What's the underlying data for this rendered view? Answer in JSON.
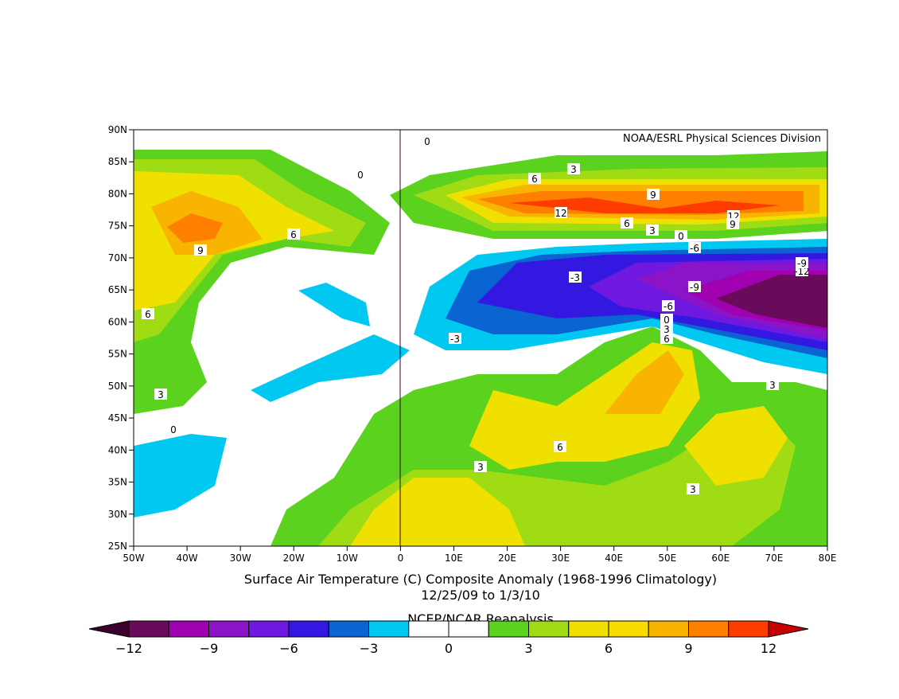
{
  "map": {
    "credit": "NOAA/ESRL Physical Sciences Division",
    "title": "Surface Air Temperature (C) Composite Anomaly (1968-1996 Climatology)",
    "dates": "12/25/09   to 1/3/10",
    "source": "NCEP/NCAR Reanalysis",
    "lat_labels": [
      "90N",
      "85N",
      "80N",
      "75N",
      "70N",
      "65N",
      "60N",
      "55N",
      "50N",
      "45N",
      "40N",
      "35N",
      "30N",
      "25N"
    ],
    "lon_labels": [
      "50W",
      "40W",
      "30W",
      "20W",
      "10W",
      "0",
      "10E",
      "20E",
      "30E",
      "40E",
      "50E",
      "60E",
      "70E",
      "80E"
    ],
    "contour_labels": [
      "0",
      "0",
      "3",
      "6",
      "9",
      "12",
      "6",
      "3",
      "0",
      "12",
      "9",
      "-6",
      "-9",
      "-12",
      "-9",
      "-3",
      "-6",
      "-3",
      "0",
      "3",
      "6",
      "9",
      "6",
      "6",
      "3",
      "3",
      "3",
      "6",
      "3",
      "0"
    ],
    "colorbar": {
      "colors": [
        "#3c002e",
        "#6a0a5a",
        "#a000b0",
        "#8c14c8",
        "#6e18e0",
        "#3218e0",
        "#0a64d2",
        "#00c8f0",
        "#ffffff",
        "#ffffff",
        "#5ad21e",
        "#a0dc14",
        "#f0e000",
        "#f8dc00",
        "#f8b400",
        "#ff8000",
        "#ff3c00",
        "#c80000"
      ],
      "labels": [
        "−12",
        "−9",
        "−6",
        "−3",
        "0",
        "3",
        "6",
        "9",
        "12"
      ]
    }
  }
}
